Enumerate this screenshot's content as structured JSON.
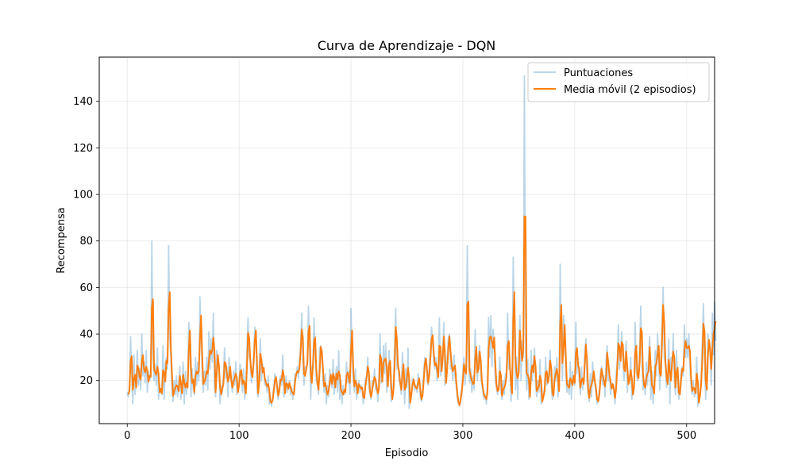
{
  "chart_data": {
    "type": "line",
    "title": "Curva de Aprendizaje - DQN",
    "xlabel": "Episodio",
    "ylabel": "Recompensa",
    "xlim": [
      -25,
      525
    ],
    "ylim": [
      1.5,
      159
    ],
    "xticks": [
      0,
      100,
      200,
      300,
      400,
      500
    ],
    "yticks": [
      20,
      40,
      60,
      80,
      100,
      120,
      140
    ],
    "grid": true,
    "legend_position": "top-right",
    "series": [
      {
        "name": "Puntuaciones",
        "color": "#1f77b4",
        "opacity": 0.3,
        "values": [
          15,
          13,
          18,
          39,
          22,
          10,
          31,
          14,
          20,
          33,
          18,
          25,
          16,
          40,
          22,
          28,
          19,
          33,
          15,
          24,
          20,
          23,
          80,
          30,
          20,
          27,
          18,
          34,
          12,
          18,
          15,
          14,
          35,
          12,
          27,
          30,
          25,
          78,
          38,
          30,
          16,
          11,
          20,
          14,
          22,
          13,
          18,
          26,
          12,
          17,
          28,
          10,
          24,
          14,
          20,
          45,
          38,
          13,
          25,
          16,
          14,
          30,
          18,
          28,
          20,
          56,
          40,
          22,
          15,
          24,
          18,
          30,
          16,
          41,
          25,
          38,
          28,
          49,
          17,
          13,
          33,
          29,
          24,
          10,
          18,
          15,
          22,
          34,
          21,
          26,
          13,
          30,
          22,
          19,
          15,
          24,
          18,
          28,
          14,
          16,
          20,
          27,
          22,
          15,
          25,
          12,
          17,
          34,
          47,
          30,
          28,
          19,
          24,
          31,
          43,
          40,
          16,
          13,
          25,
          38,
          20,
          27,
          24,
          18,
          20,
          15,
          22,
          10,
          12,
          9,
          14,
          17,
          23,
          20,
          15,
          12,
          19,
          22,
          18,
          31,
          13,
          16,
          22,
          15,
          18,
          20,
          14,
          17,
          12,
          16,
          23,
          22,
          26,
          21,
          30,
          35,
          49,
          28,
          18,
          26,
          24,
          30,
          52,
          35,
          12,
          26,
          27,
          47,
          30,
          20,
          18,
          14,
          34,
          35,
          30,
          20,
          15,
          23,
          10,
          18,
          13,
          25,
          20,
          17,
          29,
          14,
          20,
          26,
          15,
          33,
          12,
          20,
          10,
          18,
          14,
          16,
          28,
          19,
          24,
          14,
          51,
          32,
          20,
          15,
          25,
          12,
          17,
          20,
          15,
          18,
          16,
          10,
          15,
          21,
          22,
          30,
          17,
          14,
          12,
          20,
          18,
          25,
          16,
          18,
          11,
          22,
          40,
          19,
          20,
          35,
          23,
          36,
          15,
          20,
          33,
          24,
          11,
          13,
          19,
          35,
          51,
          25,
          28,
          20,
          18,
          14,
          32,
          22,
          10,
          25,
          17,
          34,
          8,
          13,
          15,
          21,
          20,
          16,
          18,
          15,
          23,
          19,
          13,
          11,
          16,
          24,
          30,
          29,
          20,
          18,
          27,
          32,
          43,
          36,
          28,
          25,
          30,
          20,
          23,
          47,
          22,
          26,
          33,
          45,
          18,
          20,
          30,
          38,
          40,
          25,
          28,
          20,
          31,
          22,
          18,
          12,
          10,
          9,
          14,
          16,
          24,
          30,
          18,
          28,
          78,
          30,
          19,
          25,
          15,
          22,
          16,
          42,
          27,
          20,
          30,
          35,
          22,
          18,
          15,
          12,
          14,
          10,
          20,
          47,
          30,
          48,
          26,
          42,
          35,
          20,
          17,
          14,
          18,
          30,
          15,
          12,
          20,
          14,
          23,
          21,
          49,
          25,
          28,
          11,
          18,
          73,
          43,
          16,
          30,
          12,
          35,
          48,
          20,
          37,
          30,
          151,
          30,
          16,
          29,
          12,
          14,
          33,
          20,
          27,
          34,
          18,
          13,
          20,
          15,
          29,
          10,
          12,
          14,
          17,
          30,
          18,
          20,
          24,
          33,
          18,
          12,
          15,
          26,
          20,
          30,
          13,
          18,
          70,
          35,
          20,
          48,
          40,
          22,
          15,
          20,
          14,
          28,
          12,
          24,
          20,
          18,
          45,
          23,
          30,
          20,
          14,
          26,
          16,
          21,
          33,
          38,
          19,
          14,
          11,
          23,
          13,
          28,
          20,
          19,
          14,
          10,
          12,
          16,
          24,
          26,
          18,
          22,
          13,
          29,
          35,
          20,
          25,
          14,
          19,
          18,
          15,
          10,
          23,
          28,
          44,
          25,
          32,
          41,
          30,
          20,
          28,
          37,
          15,
          22,
          19,
          30,
          12,
          16,
          18,
          45,
          25,
          20,
          22,
          33,
          52,
          30,
          16,
          20,
          14,
          28,
          18,
          30,
          39,
          12,
          24,
          10,
          19,
          33,
          22,
          40,
          30,
          16,
          28,
          45,
          60,
          30,
          27,
          17,
          20,
          38,
          10,
          30,
          25,
          40,
          20,
          14,
          33,
          18,
          12,
          16,
          24,
          26,
          22,
          44,
          30,
          38,
          30,
          40,
          25,
          17,
          14,
          20,
          13,
          16,
          30,
          9,
          12,
          15,
          22,
          36,
          53,
          29,
          12,
          20,
          40,
          35,
          32,
          18,
          49,
          31,
          54,
          37
        ]
      },
      {
        "name": "Media móvil (2 episodios)",
        "color": "#ff7f0e",
        "opacity": 1,
        "window": 2
      }
    ]
  }
}
